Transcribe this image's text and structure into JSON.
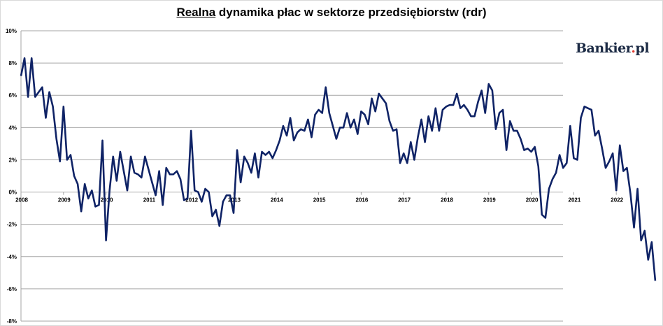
{
  "chart_data": {
    "type": "line",
    "title_underlined": "Realna",
    "title_rest": " dynamika płac w sektorze przedsiębiorstw (rdr)",
    "logo_main": "Bankier",
    "logo_dot": ".",
    "logo_end": "pl",
    "ylim": [
      -8,
      10
    ],
    "y_ticks": [
      "10%",
      "8%",
      "6%",
      "4%",
      "2%",
      "0%",
      "-2%",
      "-4%",
      "-6%",
      "-8%"
    ],
    "y_tick_values": [
      10,
      8,
      6,
      4,
      2,
      0,
      -2,
      -4,
      -6,
      -8
    ],
    "x_ticks": [
      "2008",
      "2009",
      "2010",
      "2011",
      "2012",
      "2013",
      "2014",
      "2015",
      "2016",
      "2017",
      "2018",
      "2019",
      "2020",
      "2021",
      "2022"
    ],
    "grid": true,
    "line_color": "#0f2366",
    "series": [
      {
        "values": [
          7.2,
          8.3,
          5.9,
          8.3,
          5.9,
          6.2,
          6.5,
          4.6,
          6.2,
          5.3,
          3.3,
          1.9,
          5.3,
          2.0,
          2.3,
          1.0,
          0.5,
          -1.2,
          0.5,
          -0.4,
          0.1,
          -0.9,
          -0.8,
          3.2,
          -3.0,
          0.1,
          2.2,
          0.7,
          2.5,
          1.3,
          0.1,
          2.2,
          1.2,
          1.1,
          0.9,
          2.2,
          1.4,
          0.6,
          -0.2,
          1.3,
          -0.8,
          1.5,
          1.1,
          1.1,
          1.3,
          0.8,
          -0.5,
          -0.4,
          3.8,
          0.1,
          0.0,
          -0.6,
          0.2,
          0.0,
          -1.5,
          -1.1,
          -2.1,
          -0.6,
          -0.2,
          -0.2,
          -1.3,
          2.6,
          0.6,
          2.2,
          1.8,
          1.2,
          2.4,
          0.9,
          2.5,
          2.3,
          2.5,
          2.1,
          2.6,
          3.2,
          4.1,
          3.5,
          4.6,
          3.2,
          3.7,
          3.9,
          3.8,
          4.5,
          3.4,
          4.8,
          5.1,
          4.9,
          6.5,
          4.9,
          4.1,
          3.3,
          4.0,
          4.0,
          4.9,
          4.0,
          4.5,
          3.6,
          5.0,
          4.8,
          4.2,
          5.8,
          5.0,
          6.1,
          5.8,
          5.5,
          4.4,
          3.8,
          3.9,
          1.8,
          2.4,
          1.8,
          3.1,
          2.0,
          3.4,
          4.5,
          3.1,
          4.7,
          3.8,
          5.2,
          3.8,
          5.1,
          5.3,
          5.4,
          5.4,
          6.1,
          5.2,
          5.4,
          5.1,
          4.7,
          4.7,
          5.6,
          6.3,
          4.9,
          6.7,
          6.3,
          3.9,
          4.9,
          5.1,
          2.6,
          4.4,
          3.8,
          3.8,
          3.3,
          2.6,
          2.7,
          2.5,
          2.8,
          1.6,
          -1.4,
          -1.6,
          0.2,
          0.8,
          1.2,
          2.3,
          1.5,
          1.8,
          4.1,
          2.1,
          2.0,
          4.6,
          5.3,
          5.2,
          5.1,
          3.5,
          3.8,
          2.7,
          1.5,
          1.9,
          2.4,
          0.1,
          2.9,
          1.3,
          1.5,
          -0.1,
          -2.2,
          0.2,
          -3.0,
          -2.4,
          -4.2,
          -3.1,
          -5.5
        ]
      }
    ]
  }
}
